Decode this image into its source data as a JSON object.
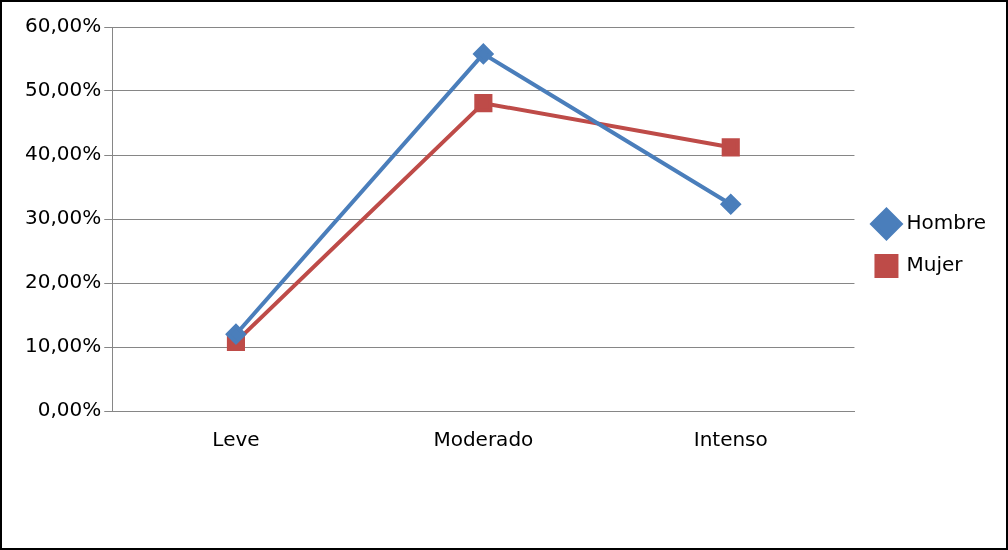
{
  "chart_data": {
    "type": "line",
    "categories": [
      "Leve",
      "Moderado",
      "Intenso"
    ],
    "series": [
      {
        "name": "Hombre",
        "color": "#4a7ebb",
        "values": [
          12,
          55.8,
          32.3
        ],
        "marker": "diamond"
      },
      {
        "name": "Mujer",
        "color": "#be4b48",
        "values": [
          10.8,
          48.1,
          41.2
        ],
        "marker": "square"
      }
    ],
    "ylim": [
      0,
      60
    ],
    "yticks": [
      {
        "value": 0,
        "label": "0,00%"
      },
      {
        "value": 10,
        "label": "10,00%"
      },
      {
        "value": 20,
        "label": "20,00%"
      },
      {
        "value": 30,
        "label": "30,00%"
      },
      {
        "value": 40,
        "label": "40,00%"
      },
      {
        "value": 50,
        "label": "50,00%"
      },
      {
        "value": 60,
        "label": "60,00%"
      }
    ],
    "grid": "y",
    "legend": "right",
    "line_style": "solid"
  }
}
